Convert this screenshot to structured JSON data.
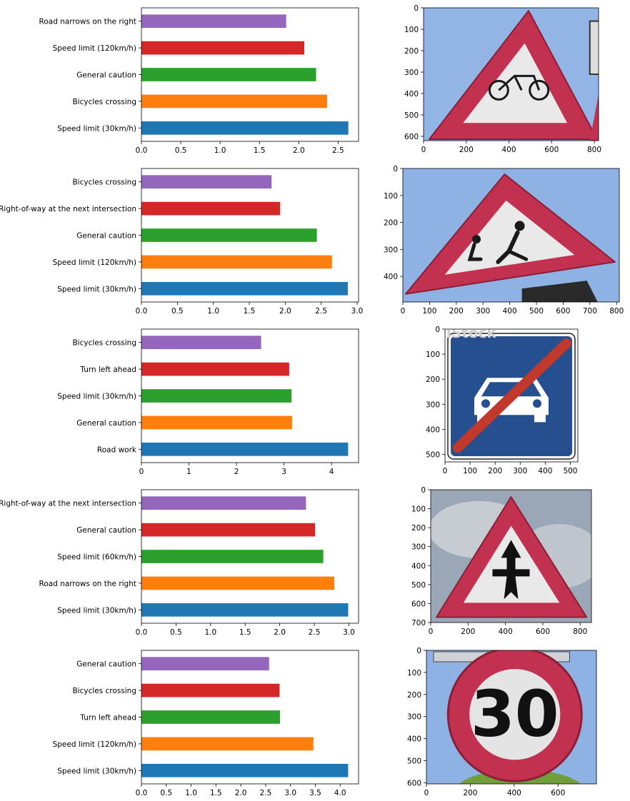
{
  "colors": {
    "series": [
      "#1f77b4",
      "#ff7f0e",
      "#2ca02c",
      "#d62728",
      "#9467bd"
    ],
    "sky": "#93b5e6",
    "sign_red": "#c23150",
    "sign_white": "#e9e9e9",
    "blue_sign": "#264f8f"
  },
  "chart_data": [
    {
      "type": "bar",
      "orientation": "horizontal",
      "categories": [
        "Speed limit (30km/h)",
        "Bicycles crossing",
        "General caution",
        "Speed limit (120km/h)",
        "Road narrows on the right"
      ],
      "values": [
        2.63,
        2.36,
        2.22,
        2.07,
        1.84
      ],
      "xlim": [
        0,
        2.76
      ],
      "xticks": [
        "0.0",
        "0.5",
        "1.0",
        "1.5",
        "2.0",
        "2.5"
      ],
      "xtick_values": [
        0,
        0.5,
        1.0,
        1.5,
        2.0,
        2.5
      ]
    },
    {
      "type": "bar",
      "orientation": "horizontal",
      "categories": [
        "Speed limit (30km/h)",
        "Speed limit (120km/h)",
        "General caution",
        "Right-of-way at the next intersection",
        "Bicycles crossing"
      ],
      "values": [
        2.87,
        2.65,
        2.44,
        1.93,
        1.81
      ],
      "xlim": [
        0,
        3.02
      ],
      "xticks": [
        "0.0",
        "0.5",
        "1.0",
        "1.5",
        "2.0",
        "2.5",
        "3.0"
      ],
      "xtick_values": [
        0,
        0.5,
        1.0,
        1.5,
        2.0,
        2.5,
        3.0
      ]
    },
    {
      "type": "bar",
      "orientation": "horizontal",
      "categories": [
        "Road work",
        "General caution",
        "Speed limit (30km/h)",
        "Turn left ahead",
        "Bicycles crossing"
      ],
      "values": [
        4.35,
        3.17,
        3.16,
        3.11,
        2.52
      ],
      "xlim": [
        0,
        4.57
      ],
      "xticks": [
        "0",
        "1",
        "2",
        "3",
        "4"
      ],
      "xtick_values": [
        0,
        1,
        2,
        3,
        4
      ]
    },
    {
      "type": "bar",
      "orientation": "horizontal",
      "categories": [
        "Speed limit (30km/h)",
        "Road narrows on the right",
        "Speed limit (60km/h)",
        "General caution",
        "Right-of-way at the next intersection"
      ],
      "values": [
        2.99,
        2.79,
        2.63,
        2.51,
        2.38
      ],
      "xlim": [
        0,
        3.14
      ],
      "xticks": [
        "0.0",
        "0.5",
        "1.0",
        "1.5",
        "2.0",
        "2.5",
        "3.0"
      ],
      "xtick_values": [
        0,
        0.5,
        1.0,
        1.5,
        2.0,
        2.5,
        3.0
      ]
    },
    {
      "type": "bar",
      "orientation": "horizontal",
      "categories": [
        "Speed limit (30km/h)",
        "Speed limit (120km/h)",
        "Turn left ahead",
        "Bicycles crossing",
        "General caution"
      ],
      "values": [
        4.16,
        3.46,
        2.79,
        2.78,
        2.57
      ],
      "xlim": [
        0,
        4.37
      ],
      "xticks": [
        "0.0",
        "0.5",
        "1.0",
        "1.5",
        "2.0",
        "2.5",
        "3.0",
        "3.5",
        "4.0"
      ],
      "xtick_values": [
        0,
        0.5,
        1.0,
        1.5,
        2.0,
        2.5,
        3.0,
        3.5,
        4.0
      ]
    }
  ],
  "images": [
    {
      "subject": "bicycles-crossing-sign",
      "xticks": [
        "0",
        "200",
        "400",
        "600",
        "800"
      ],
      "xtick_values": [
        0,
        200,
        400,
        600,
        800
      ],
      "yticks": [
        "0",
        "100",
        "200",
        "300",
        "400",
        "500",
        "600"
      ],
      "ytick_values": [
        0,
        100,
        200,
        300,
        400,
        500,
        600
      ],
      "width": 820,
      "height": 620
    },
    {
      "subject": "children-crossing-sign",
      "xticks": [
        "0",
        "100",
        "200",
        "300",
        "400",
        "500",
        "600",
        "700",
        "800"
      ],
      "xtick_values": [
        0,
        100,
        200,
        300,
        400,
        500,
        600,
        700,
        800
      ],
      "yticks": [
        "0",
        "100",
        "200",
        "300",
        "400"
      ],
      "ytick_values": [
        0,
        100,
        200,
        300,
        400
      ],
      "width": 810,
      "height": 495
    },
    {
      "subject": "end-of-motorway-sign",
      "watermark": "iStock",
      "xticks": [
        "0",
        "100",
        "200",
        "300",
        "400",
        "500"
      ],
      "xtick_values": [
        0,
        100,
        200,
        300,
        400,
        500
      ],
      "yticks": [
        "0",
        "100",
        "200",
        "300",
        "400",
        "500"
      ],
      "ytick_values": [
        0,
        100,
        200,
        300,
        400,
        500
      ],
      "width": 530,
      "height": 530
    },
    {
      "subject": "right-of-way-sign",
      "xticks": [
        "0",
        "200",
        "400",
        "600",
        "800"
      ],
      "xtick_values": [
        0,
        200,
        400,
        600,
        800
      ],
      "yticks": [
        "0",
        "100",
        "200",
        "300",
        "400",
        "500",
        "600",
        "700"
      ],
      "ytick_values": [
        0,
        100,
        200,
        300,
        400,
        500,
        600,
        700
      ],
      "width": 860,
      "height": 700
    },
    {
      "subject": "speed-limit-30-sign",
      "sign_text": "30",
      "xticks": [
        "0",
        "200",
        "400",
        "600"
      ],
      "xtick_values": [
        0,
        200,
        400,
        600
      ],
      "yticks": [
        "0",
        "100",
        "200",
        "300",
        "400",
        "500",
        "600"
      ],
      "ytick_values": [
        0,
        100,
        200,
        300,
        400,
        500,
        600
      ],
      "width": 775,
      "height": 605
    }
  ]
}
